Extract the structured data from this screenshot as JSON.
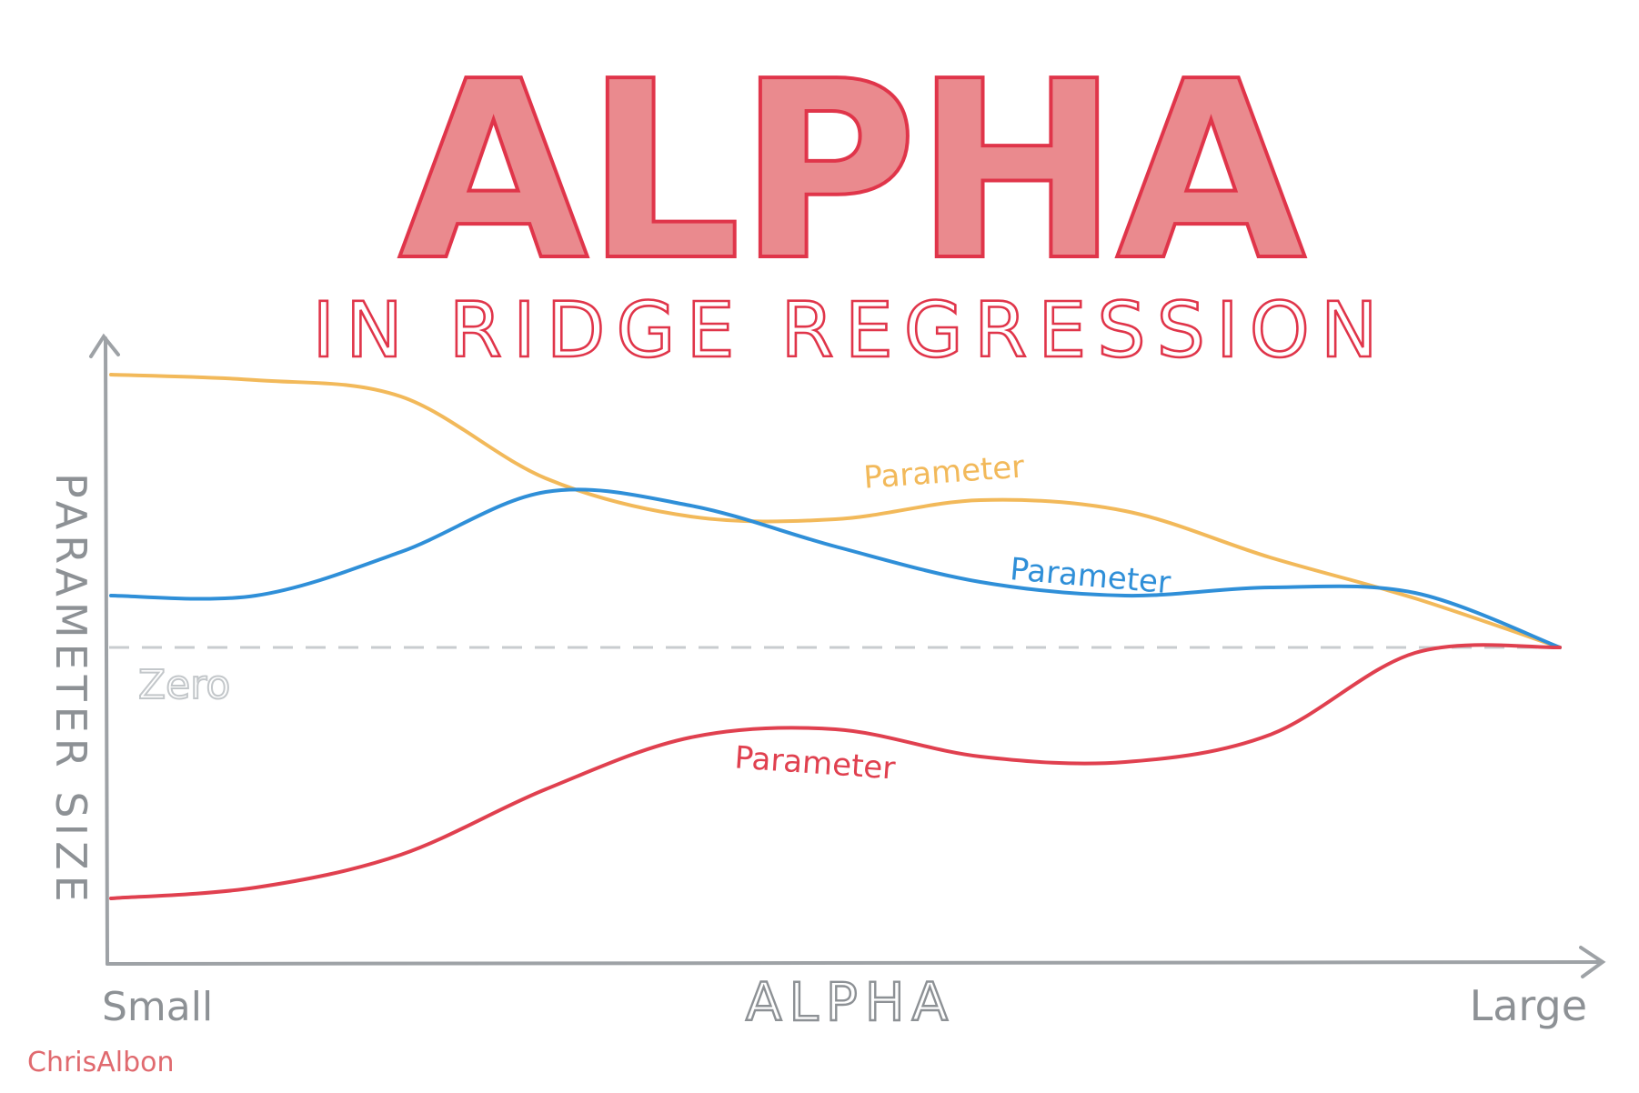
{
  "chart_data": {
    "type": "line",
    "title": "ALPHA",
    "subtitle": "IN RIDGE REGRESSION",
    "xlabel": "ALPHA",
    "ylabel": "PARAMETER SIZE",
    "x_tick_labels": [
      "Small",
      "Large"
    ],
    "grid": false,
    "x": [
      0,
      0.1,
      0.2,
      0.3,
      0.4,
      0.5,
      0.6,
      0.7,
      0.8,
      0.9,
      1.0
    ],
    "zero_line": {
      "label": "Zero",
      "value": 0
    },
    "series": [
      {
        "name": "Parameter",
        "color": "#f2b95a",
        "values": [
          1.0,
          0.98,
          0.92,
          0.62,
          0.48,
          0.47,
          0.54,
          0.5,
          0.33,
          0.18,
          0.0
        ]
      },
      {
        "name": "Parameter",
        "color": "#2f8fd8",
        "values": [
          0.19,
          0.19,
          0.35,
          0.57,
          0.52,
          0.37,
          0.24,
          0.19,
          0.22,
          0.2,
          0.0
        ]
      },
      {
        "name": "Parameter",
        "color": "#e0404f",
        "values": [
          -0.92,
          -0.88,
          -0.76,
          -0.52,
          -0.33,
          -0.3,
          -0.4,
          -0.42,
          -0.32,
          -0.02,
          0.0
        ]
      }
    ]
  },
  "credit": "ChrisAlbon"
}
